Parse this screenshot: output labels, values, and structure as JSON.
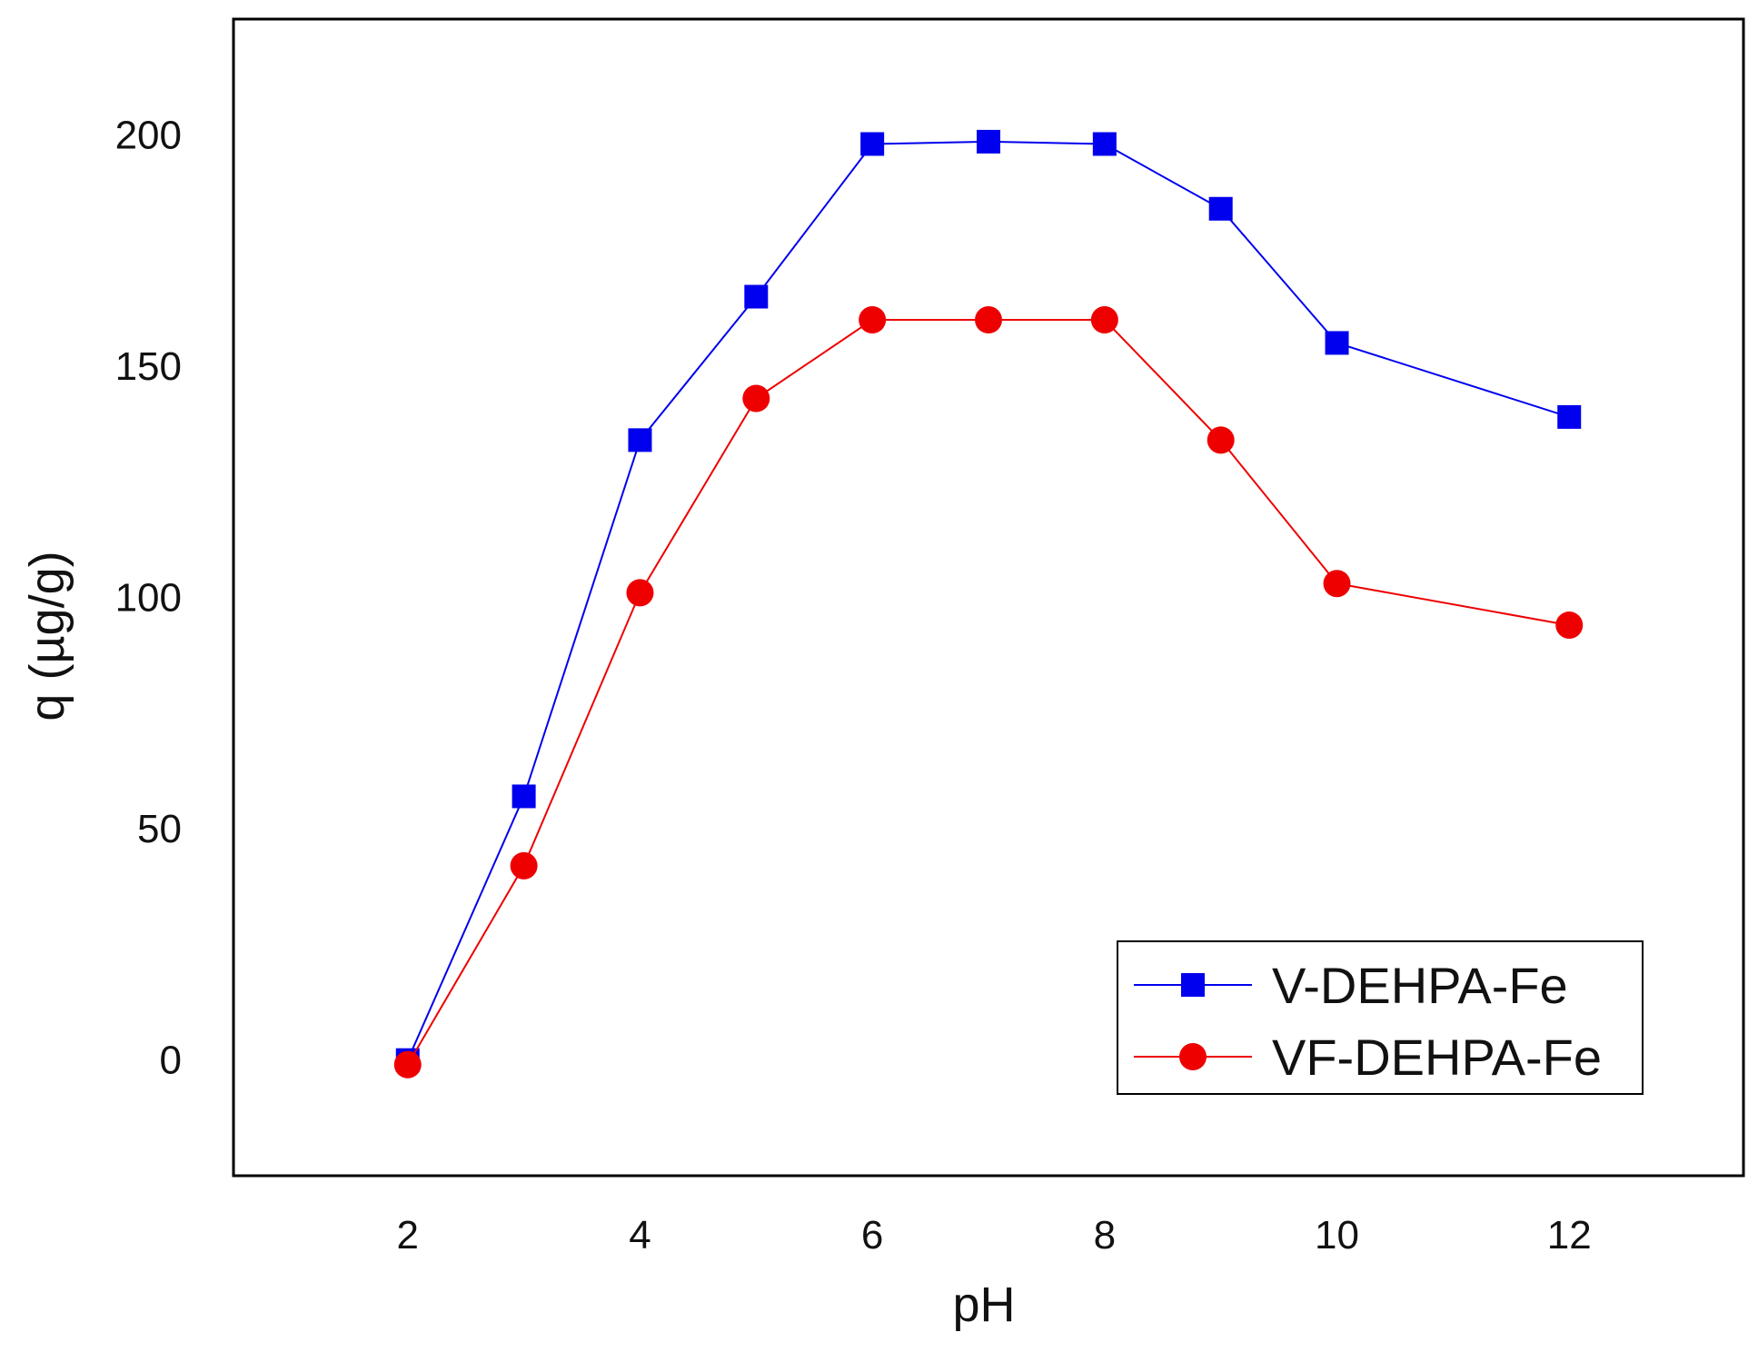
{
  "chart_data": {
    "type": "line",
    "title": "",
    "xlabel": "pH",
    "ylabel": "q (µg/g)",
    "xlim": [
      0.5,
      13.5
    ],
    "ylim": [
      -25,
      225
    ],
    "xticks": [
      2,
      4,
      6,
      8,
      10,
      12
    ],
    "yticks": [
      0,
      50,
      100,
      150,
      200
    ],
    "x": [
      2,
      3,
      4,
      5,
      6,
      7,
      8,
      9,
      10,
      12
    ],
    "series": [
      {
        "name": "V-DEHPA-Fe",
        "color": "#0000ee",
        "marker": "square",
        "values": [
          0,
          57,
          134,
          165,
          198,
          198.5,
          198,
          184,
          155,
          139
        ]
      },
      {
        "name": "VF-DEHPA-Fe",
        "color": "#ee0000",
        "marker": "circle",
        "values": [
          -1,
          42,
          101,
          143,
          160,
          160,
          160,
          134,
          103,
          94
        ]
      }
    ],
    "legend_position": "bottom-right",
    "grid": false
  }
}
